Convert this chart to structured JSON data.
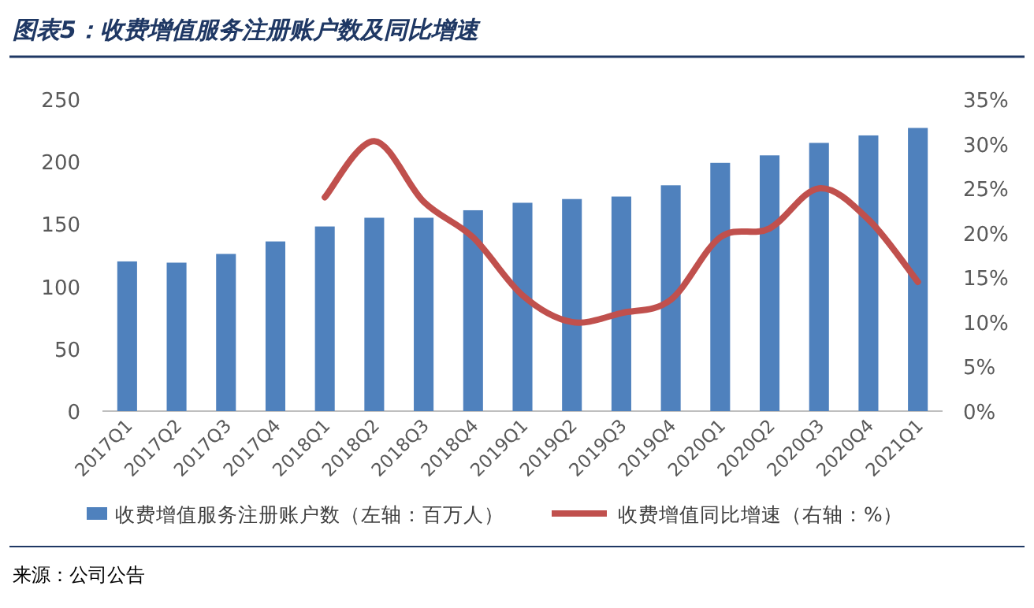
{
  "chart_data": {
    "type": "bar",
    "title": "图表5：收费增值服务注册账户数及同比增速",
    "categories": [
      "2017Q1",
      "2017Q2",
      "2017Q3",
      "2017Q4",
      "2018Q1",
      "2018Q2",
      "2018Q3",
      "2018Q4",
      "2019Q1",
      "2019Q2",
      "2019Q3",
      "2019Q4",
      "2020Q1",
      "2020Q2",
      "2020Q3",
      "2020Q4",
      "2021Q1"
    ],
    "series": [
      {
        "name": "收费增值服务注册账户数（左轴：百万人）",
        "color": "#4f81bd",
        "values": [
          120,
          119,
          126,
          136,
          148,
          155,
          155,
          161,
          167,
          170,
          172,
          181,
          199,
          205,
          215,
          221,
          227
        ]
      },
      {
        "name": "收费增值同比增速（右轴：%）",
        "type": "line",
        "axis": "y2",
        "color": "#c0504d",
        "values": [
          null,
          null,
          null,
          null,
          24,
          30.3,
          23.5,
          19.5,
          13,
          10,
          11,
          12.5,
          19.5,
          20.5,
          25,
          21.5,
          14.5
        ]
      }
    ],
    "ylim": [
      0,
      250
    ],
    "yticks": [
      0,
      50,
      100,
      150,
      200,
      250
    ],
    "y2lim": [
      0,
      35
    ],
    "y2ticks": [
      {
        "value": 0,
        "label": "0%"
      },
      {
        "value": 5,
        "label": "5%"
      },
      {
        "value": 10,
        "label": "10%"
      },
      {
        "value": 15,
        "label": "15%"
      },
      {
        "value": 20,
        "label": "20%"
      },
      {
        "value": 25,
        "label": "25%"
      },
      {
        "value": 30,
        "label": "30%"
      },
      {
        "value": 35,
        "label": "35%"
      }
    ],
    "legend": "bottom",
    "grid": false,
    "annotations": [
      "来源：公司公告"
    ]
  }
}
